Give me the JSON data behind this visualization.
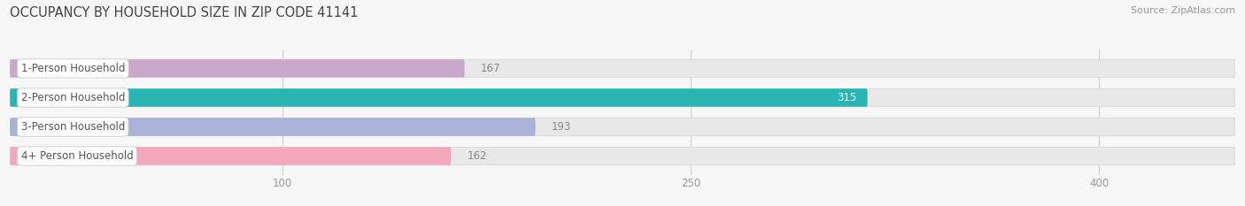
{
  "title": "OCCUPANCY BY HOUSEHOLD SIZE IN ZIP CODE 41141",
  "source": "Source: ZipAtlas.com",
  "categories": [
    "1-Person Household",
    "2-Person Household",
    "3-Person Household",
    "4+ Person Household"
  ],
  "values": [
    167,
    315,
    193,
    162
  ],
  "bar_colors": [
    "#c9a8ca",
    "#2ab5b5",
    "#aab2d8",
    "#f4a8bc"
  ],
  "bar_bg_color": "#e8e8e8",
  "label_text_color": "#555555",
  "value_text_colors": [
    "#888888",
    "#ffffff",
    "#888888",
    "#888888"
  ],
  "title_fontsize": 10.5,
  "source_fontsize": 8,
  "label_fontsize": 8.5,
  "value_fontsize": 8.5,
  "tick_fontsize": 8.5,
  "xticks": [
    100,
    250,
    400
  ],
  "xmin": 0,
  "xmax": 450,
  "bar_height": 0.62,
  "background_color": "#f7f7f7"
}
